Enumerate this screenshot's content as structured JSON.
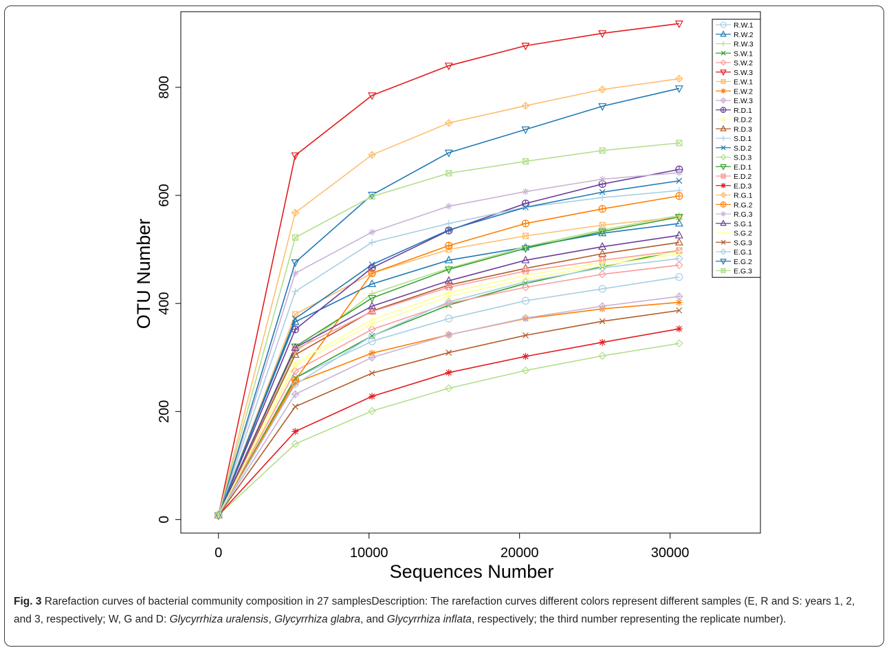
{
  "caption": {
    "label": "Fig. 3",
    "text_1": " Rarefaction curves of bacterial community composition in 27 samplesDescription: The rarefaction curves different colors represent different samples (E, R and S: years 1, 2, and 3, respectively; W, G and D: ",
    "species_1": "Glycyrrhiza uralensis",
    "sep_1": ", ",
    "species_2": "Glycyrrhiza glabra",
    "sep_2": ", and ",
    "species_3": "Glycyrrhiza inflata",
    "text_2": ", respectively; the third number representing the replicate number)."
  },
  "chart_data": {
    "type": "line",
    "xlabel": "Sequences Number",
    "ylabel": "OTU Number",
    "xlim": [
      -2500,
      36000
    ],
    "ylim": [
      -25,
      940
    ],
    "x_ticks": [
      0,
      10000,
      20000,
      30000
    ],
    "y_ticks": [
      0,
      200,
      400,
      600,
      800
    ],
    "grid": false,
    "legend_position": "top-right",
    "x": [
      0,
      5100,
      10200,
      15300,
      20400,
      25500,
      30600
    ],
    "series": [
      {
        "name": "R.W.1",
        "color": "#a6cee3",
        "marker": "circle",
        "values": [
          8,
          262,
          330,
          372,
          405,
          427,
          449
        ]
      },
      {
        "name": "R.W.2",
        "color": "#1f78b4",
        "marker": "triangle-up",
        "values": [
          8,
          366,
          436,
          480,
          504,
          530,
          548
        ]
      },
      {
        "name": "R.W.3",
        "color": "#b2df8a",
        "marker": "plus",
        "values": [
          8,
          310,
          418,
          465,
          505,
          536,
          563
        ]
      },
      {
        "name": "S.W.1",
        "color": "#33a02c",
        "marker": "x",
        "values": [
          8,
          262,
          340,
          397,
          437,
          468,
          498
        ]
      },
      {
        "name": "S.W.2",
        "color": "#fb9a99",
        "marker": "diamond",
        "values": [
          8,
          275,
          352,
          400,
          430,
          454,
          471
        ]
      },
      {
        "name": "S.W.3",
        "color": "#e31a1c",
        "marker": "triangle-down",
        "values": [
          8,
          674,
          785,
          840,
          877,
          900,
          918
        ]
      },
      {
        "name": "E.W.1",
        "color": "#fdbf6f",
        "marker": "square-x",
        "values": [
          8,
          380,
          456,
          500,
          525,
          545,
          560
        ]
      },
      {
        "name": "E.W.2",
        "color": "#ff7f00",
        "marker": "asterisk",
        "values": [
          8,
          253,
          308,
          342,
          372,
          390,
          402
        ]
      },
      {
        "name": "E.W.3",
        "color": "#cab2d6",
        "marker": "diamond-plus",
        "values": [
          8,
          232,
          300,
          342,
          373,
          395,
          413
        ]
      },
      {
        "name": "R.D.1",
        "color": "#6a3d9a",
        "marker": "circle-plus",
        "values": [
          8,
          352,
          466,
          535,
          585,
          621,
          648
        ]
      },
      {
        "name": "R.D.2",
        "color": "#ffff99",
        "marker": "star",
        "values": [
          8,
          285,
          362,
          413,
          445,
          470,
          492
        ]
      },
      {
        "name": "R.D.3",
        "color": "#b15928",
        "marker": "triangle-up",
        "values": [
          8,
          305,
          386,
          434,
          465,
          492,
          513
        ]
      },
      {
        "name": "S.D.1",
        "color": "#a6cee3",
        "marker": "plus",
        "values": [
          8,
          422,
          513,
          548,
          578,
          596,
          609
        ]
      },
      {
        "name": "S.D.2",
        "color": "#1f78b4",
        "marker": "x",
        "values": [
          8,
          372,
          472,
          536,
          578,
          606,
          627
        ]
      },
      {
        "name": "S.D.3",
        "color": "#b2df8a",
        "marker": "diamond",
        "values": [
          8,
          140,
          201,
          243,
          276,
          303,
          326
        ]
      },
      {
        "name": "E.D.1",
        "color": "#33a02c",
        "marker": "triangle-down",
        "values": [
          8,
          320,
          410,
          463,
          502,
          533,
          560
        ]
      },
      {
        "name": "E.D.2",
        "color": "#fb9a99",
        "marker": "square-x",
        "values": [
          8,
          315,
          385,
          430,
          460,
          480,
          498
        ]
      },
      {
        "name": "E.D.3",
        "color": "#e31a1c",
        "marker": "asterisk",
        "values": [
          8,
          163,
          228,
          272,
          302,
          328,
          353
        ]
      },
      {
        "name": "R.G.1",
        "color": "#fdbf6f",
        "marker": "diamond-plus",
        "values": [
          8,
          568,
          675,
          734,
          766,
          796,
          816
        ]
      },
      {
        "name": "R.G.2",
        "color": "#ff7f00",
        "marker": "circle-plus",
        "values": [
          8,
          258,
          456,
          507,
          548,
          575,
          599
        ]
      },
      {
        "name": "R.G.3",
        "color": "#cab2d6",
        "marker": "star",
        "values": [
          8,
          456,
          532,
          580,
          607,
          630,
          642
        ]
      },
      {
        "name": "S.G.1",
        "color": "#6a3d9a",
        "marker": "triangle-up",
        "values": [
          8,
          318,
          395,
          442,
          480,
          505,
          526
        ]
      },
      {
        "name": "S.G.2",
        "color": "#ffff99",
        "marker": "plus",
        "values": [
          8,
          290,
          370,
          420,
          452,
          476,
          496
        ]
      },
      {
        "name": "S.G.3",
        "color": "#b15928",
        "marker": "x",
        "values": [
          8,
          209,
          271,
          309,
          341,
          367,
          387
        ]
      },
      {
        "name": "E.G.1",
        "color": "#a6cee3",
        "marker": "diamond",
        "values": [
          8,
          250,
          340,
          403,
          440,
          466,
          483
        ]
      },
      {
        "name": "E.G.2",
        "color": "#1f78b4",
        "marker": "triangle-down",
        "values": [
          8,
          476,
          601,
          679,
          722,
          765,
          798
        ]
      },
      {
        "name": "E.G.3",
        "color": "#b2df8a",
        "marker": "square-x",
        "values": [
          8,
          522,
          598,
          641,
          663,
          683,
          697
        ]
      }
    ]
  }
}
